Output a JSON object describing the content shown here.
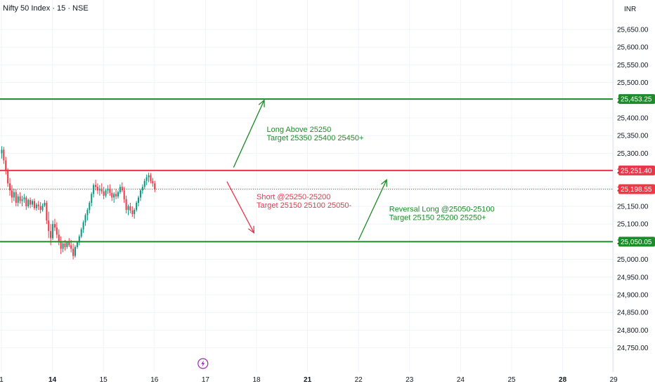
{
  "header": {
    "title": "Nifty 50 Index · 15 · NSE",
    "currency": "INR"
  },
  "colors": {
    "up": "#089981",
    "down": "#f23645",
    "green_line": "#1e8a2a",
    "red_line": "#e8364a",
    "last_price": "#f23645",
    "arrow_green": "#1e8a2a",
    "arrow_red": "#e8364a",
    "grid": "#f0f3fa",
    "axis_border": "#e0e3eb",
    "icon": "#9c27b0"
  },
  "chart_data": {
    "type": "candlestick",
    "title": "Nifty 50 Index · 15 · NSE",
    "y_axis": {
      "min": 24730,
      "max": 25690,
      "ticks": [
        25650,
        25600,
        25550,
        25500,
        25450,
        25400,
        25350,
        25300,
        25250,
        25200,
        25150,
        25100,
        25050,
        25000,
        24950,
        24900,
        24850,
        24800,
        24750
      ],
      "tick_labels": [
        "25,650.00",
        "25,600.00",
        "25,550.00",
        "25,500.00",
        "25,450.00",
        "25,400.00",
        "25,350.00",
        "25,300.00",
        "25,250.00",
        "25,200.00",
        "25,150.00",
        "25,100.00",
        "25,050.00",
        "25,000.00",
        "24,950.00",
        "24,900.00",
        "24,850.00",
        "24,800.00",
        "24,750.00"
      ]
    },
    "x_axis": {
      "labels": [
        {
          "text": "1",
          "day": 0,
          "bold": false
        },
        {
          "text": "14",
          "day": 1,
          "bold": true
        },
        {
          "text": "15",
          "day": 2,
          "bold": false
        },
        {
          "text": "16",
          "day": 3,
          "bold": false
        },
        {
          "text": "17",
          "day": 4,
          "bold": false
        },
        {
          "text": "18",
          "day": 5,
          "bold": false
        },
        {
          "text": "21",
          "day": 6,
          "bold": true
        },
        {
          "text": "22",
          "day": 7,
          "bold": false
        },
        {
          "text": "23",
          "day": 8,
          "bold": false
        },
        {
          "text": "24",
          "day": 9,
          "bold": false
        },
        {
          "text": "25",
          "day": 10,
          "bold": false
        },
        {
          "text": "28",
          "day": 11,
          "bold": true
        },
        {
          "text": "29",
          "day": 12,
          "bold": false
        }
      ]
    },
    "horizontal_levels": [
      {
        "value": 25453.25,
        "label": "25,453.25",
        "color": "#1e8a2a"
      },
      {
        "value": 25251.4,
        "label": "25,251.40",
        "color": "#e8364a"
      },
      {
        "value": 25050.05,
        "label": "25,050.05",
        "color": "#1e8a2a"
      }
    ],
    "last_price": {
      "value": 25198.55,
      "label": "25,198.55"
    },
    "annotations": [
      {
        "lines": [
          "Long  Above 25250",
          "Target 25350 25400 25450+"
        ],
        "color": "#1e8a2a",
        "day": 5.2,
        "value": 25360
      },
      {
        "lines": [
          "Short @25250-25200",
          "Target 25150 25100 25050-"
        ],
        "color": "#e8364a",
        "day": 5.0,
        "value": 25170
      },
      {
        "lines": [
          "Reversal Long  @25050-25100",
          "Target 25150 25200 25250+"
        ],
        "color": "#1e8a2a",
        "day": 7.6,
        "value": 25135
      }
    ],
    "arrows": [
      {
        "from": {
          "day": 4.55,
          "value": 25260
        },
        "to": {
          "day": 5.15,
          "value": 25450
        },
        "color": "#1e8a2a"
      },
      {
        "from": {
          "day": 4.42,
          "value": 25220
        },
        "to": {
          "day": 4.95,
          "value": 25075
        },
        "color": "#e8364a"
      },
      {
        "from": {
          "day": 7.0,
          "value": 25055
        },
        "to": {
          "day": 7.55,
          "value": 25225
        },
        "color": "#1e8a2a"
      }
    ],
    "candles_start_day": 0,
    "candles_per_day": 25,
    "candles": [
      [
        25300,
        25320,
        25285,
        25310
      ],
      [
        25310,
        25318,
        25270,
        25280
      ],
      [
        25280,
        25290,
        25240,
        25250
      ],
      [
        25250,
        25258,
        25205,
        25215
      ],
      [
        25215,
        25230,
        25180,
        25195
      ],
      [
        25195,
        25210,
        25160,
        25175
      ],
      [
        25175,
        25200,
        25165,
        25190
      ],
      [
        25190,
        25198,
        25150,
        25160
      ],
      [
        25160,
        25185,
        25150,
        25178
      ],
      [
        25178,
        25190,
        25158,
        25165
      ],
      [
        25165,
        25180,
        25150,
        25170
      ],
      [
        25170,
        25185,
        25160,
        25175
      ],
      [
        25175,
        25180,
        25140,
        25150
      ],
      [
        25150,
        25172,
        25145,
        25168
      ],
      [
        25168,
        25175,
        25145,
        25155
      ],
      [
        25155,
        25170,
        25148,
        25165
      ],
      [
        25165,
        25172,
        25140,
        25145
      ],
      [
        25145,
        25160,
        25138,
        25155
      ],
      [
        25155,
        25165,
        25140,
        25150
      ],
      [
        25150,
        25162,
        25130,
        25140
      ],
      [
        25140,
        25158,
        25135,
        25152
      ],
      [
        25152,
        25168,
        25148,
        25160
      ],
      [
        25160,
        25166,
        25100,
        25110
      ],
      [
        25110,
        25135,
        25060,
        25080
      ],
      [
        25080,
        25100,
        25040,
        25060
      ],
      [
        25060,
        25110,
        25055,
        25100
      ],
      [
        25100,
        25115,
        25080,
        25090
      ],
      [
        25090,
        25105,
        25060,
        25070
      ],
      [
        25070,
        25085,
        25040,
        25050
      ],
      [
        25050,
        25065,
        25015,
        25030
      ],
      [
        25030,
        25050,
        25020,
        25045
      ],
      [
        25045,
        25055,
        25025,
        25035
      ],
      [
        25035,
        25052,
        25030,
        25048
      ],
      [
        25048,
        25060,
        25035,
        25040
      ],
      [
        25040,
        25055,
        25020,
        25030
      ],
      [
        25030,
        25045,
        25000,
        25010
      ],
      [
        25010,
        25040,
        25005,
        25035
      ],
      [
        25035,
        25052,
        25030,
        25048
      ],
      [
        25048,
        25070,
        25040,
        25065
      ],
      [
        25065,
        25090,
        25060,
        25085
      ],
      [
        25085,
        25110,
        25075,
        25105
      ],
      [
        25105,
        25130,
        25095,
        25125
      ],
      [
        25125,
        25145,
        25110,
        25140
      ],
      [
        25140,
        25165,
        25130,
        25160
      ],
      [
        25160,
        25190,
        25150,
        25185
      ],
      [
        25185,
        25215,
        25175,
        25210
      ],
      [
        25210,
        25225,
        25195,
        25205
      ],
      [
        25205,
        25215,
        25185,
        25195
      ],
      [
        25195,
        25210,
        25180,
        25200
      ],
      [
        25200,
        25215,
        25185,
        25192
      ],
      [
        25192,
        25205,
        25170,
        25180
      ],
      [
        25180,
        25200,
        25175,
        25195
      ],
      [
        25195,
        25210,
        25185,
        25200
      ],
      [
        25200,
        25212,
        25180,
        25188
      ],
      [
        25188,
        25200,
        25165,
        25175
      ],
      [
        25175,
        25190,
        25160,
        25185
      ],
      [
        25185,
        25200,
        25170,
        25178
      ],
      [
        25178,
        25195,
        25172,
        25190
      ],
      [
        25190,
        25212,
        25185,
        25205
      ],
      [
        25205,
        25218,
        25190,
        25195
      ],
      [
        25195,
        25205,
        25160,
        25170
      ],
      [
        25170,
        25180,
        25130,
        25140
      ],
      [
        25140,
        25155,
        25125,
        25150
      ],
      [
        25150,
        25160,
        25130,
        25138
      ],
      [
        25138,
        25150,
        25120,
        25128
      ],
      [
        25128,
        25145,
        25115,
        25140
      ],
      [
        25140,
        25165,
        25135,
        25160
      ],
      [
        25160,
        25180,
        25150,
        25175
      ],
      [
        25175,
        25200,
        25165,
        25195
      ],
      [
        25195,
        25212,
        25185,
        25205
      ],
      [
        25205,
        25228,
        25198,
        25222
      ],
      [
        25222,
        25240,
        25210,
        25232
      ],
      [
        25232,
        25245,
        25218,
        25238
      ],
      [
        25238,
        25244,
        25215,
        25222
      ],
      [
        25222,
        25230,
        25205,
        25215
      ],
      [
        25215,
        25222,
        25190,
        25198
      ]
    ]
  }
}
